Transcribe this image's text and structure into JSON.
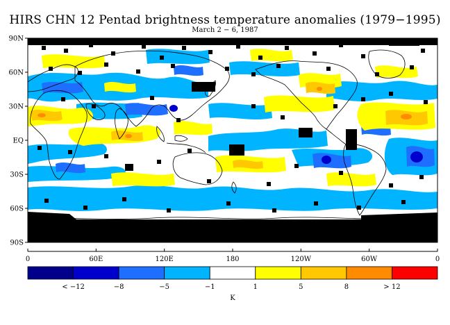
{
  "title": "HIRS CHN 12 Pentad brightness temperature anomalies (1979−1995)",
  "subtitle": "March 2 − 6, 1987",
  "lat_labels": [
    "90N",
    "60N",
    "30N",
    "EQ",
    "30S",
    "60S",
    "90S"
  ],
  "lon_labels": [
    "0",
    "60E",
    "120E",
    "180",
    "120W",
    "60W",
    "0"
  ],
  "colorbar": {
    "colors": [
      "#00008b",
      "#0000cd",
      "#1e6eff",
      "#00b4ff",
      "#ffffff",
      "#ffff00",
      "#ffc800",
      "#ff8c00",
      "#ff0000"
    ],
    "labels": [
      "< −12",
      "−8",
      "−5",
      "−1",
      "1",
      "5",
      "8",
      "> 12"
    ],
    "unit": "K"
  },
  "colors": {
    "missing": "#000000",
    "coast": "#000000"
  }
}
